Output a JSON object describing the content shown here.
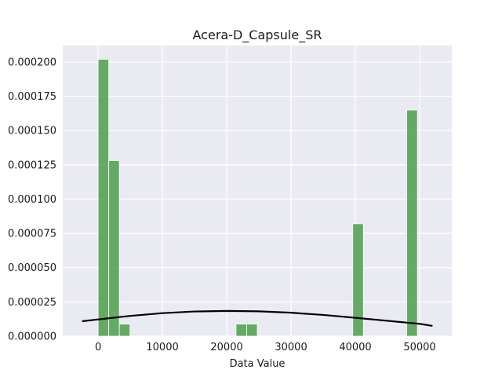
{
  "chart_data": {
    "type": "bar",
    "title": "Acera-D_Capsule_SR",
    "xlabel": "Data Value",
    "ylabel": "",
    "xlim": [
      -5500,
      55000
    ],
    "ylim": [
      0,
      0.000212
    ],
    "xticks": [
      0,
      10000,
      20000,
      30000,
      40000,
      50000
    ],
    "xtick_labels": [
      "0",
      "10000",
      "20000",
      "30000",
      "40000",
      "50000"
    ],
    "yticks": [
      0,
      2.5e-05,
      5e-05,
      7.5e-05,
      0.0001,
      0.000125,
      0.00015,
      0.000175,
      0.0002
    ],
    "ytick_labels": [
      "0.000000",
      "0.000025",
      "0.000050",
      "0.000075",
      "0.000100",
      "0.000125",
      "0.000150",
      "0.000175",
      "0.000200"
    ],
    "grid": true,
    "bar_color": "#4c9f4c",
    "curve_color": "#000000",
    "bars": [
      {
        "x0": 0,
        "x1": 1650,
        "value": 0.000202
      },
      {
        "x0": 1650,
        "x1": 3300,
        "value": 0.000128
      },
      {
        "x0": 3300,
        "x1": 4950,
        "value": 8.8e-06
      },
      {
        "x0": 21450,
        "x1": 23100,
        "value": 8.8e-06
      },
      {
        "x0": 23100,
        "x1": 24750,
        "value": 8.8e-06
      },
      {
        "x0": 39600,
        "x1": 41250,
        "value": 8.2e-05
      },
      {
        "x0": 48000,
        "x1": 49650,
        "value": 0.000165
      }
    ],
    "curve": [
      {
        "x": -2500,
        "y": 1.09e-05
      },
      {
        "x": 0,
        "y": 1.22e-05
      },
      {
        "x": 5000,
        "y": 1.48e-05
      },
      {
        "x": 10000,
        "y": 1.68e-05
      },
      {
        "x": 15000,
        "y": 1.8e-05
      },
      {
        "x": 20000,
        "y": 1.84e-05
      },
      {
        "x": 25000,
        "y": 1.81e-05
      },
      {
        "x": 30000,
        "y": 1.71e-05
      },
      {
        "x": 35000,
        "y": 1.55e-05
      },
      {
        "x": 40000,
        "y": 1.34e-05
      },
      {
        "x": 45000,
        "y": 1.12e-05
      },
      {
        "x": 50000,
        "y": 9e-06
      },
      {
        "x": 52000,
        "y": 7.5e-06
      }
    ]
  }
}
